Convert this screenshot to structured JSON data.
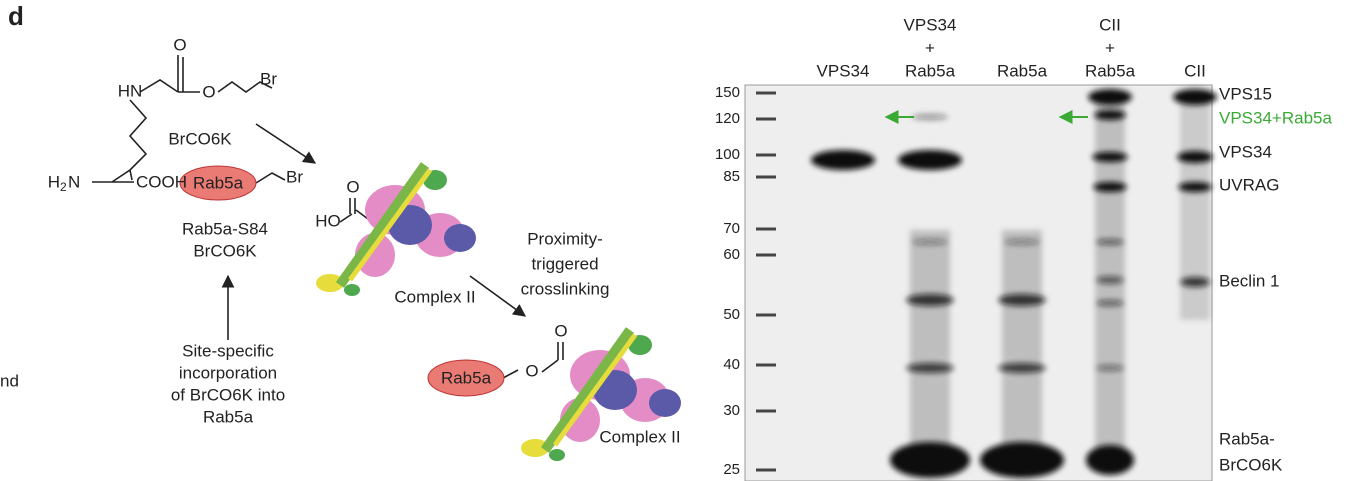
{
  "panel_label": "d",
  "left_cut_text": "nd",
  "scheme": {
    "brco6k": {
      "nh": "HN",
      "o_top": "O",
      "o_ester": "O",
      "br": "Br",
      "name": "BrCO6K",
      "amino": "H",
      "amino_sub": "2",
      "amino_n": "N",
      "cooh": "COOH"
    },
    "reagent": {
      "protein": "Rab5a",
      "br": "Br",
      "name_line1": "Rab5a-S84",
      "name_line2": "BrCO6K"
    },
    "incorporation": [
      "Site-specific",
      "incorporation",
      "of BrCO6K into",
      "Rab5a"
    ],
    "complex": {
      "o": "O",
      "ho": "HO",
      "label": "Complex II"
    },
    "crosslinking": [
      "Proximity-",
      "triggered",
      "crosslinking"
    ],
    "product": {
      "protein": "Rab5a",
      "o_ester": "O",
      "o_top": "O",
      "label": "Complex II"
    }
  },
  "gel": {
    "lanes": [
      [
        "VPS34"
      ],
      [
        "VPS34",
        "+",
        "Rab5a"
      ],
      [
        "Rab5a"
      ],
      [
        "CII",
        "+",
        "Rab5a"
      ],
      [
        "CII"
      ]
    ],
    "markers": [
      150,
      120,
      100,
      85,
      70,
      60,
      50,
      40,
      30,
      25
    ],
    "bands": [
      {
        "label": [
          "VPS15"
        ]
      },
      {
        "label": [
          "VPS34+Rab5a"
        ],
        "color": "#3aaa35"
      },
      {
        "label": [
          "VPS34"
        ]
      },
      {
        "label": [
          "UVRAG"
        ]
      },
      {
        "label": [
          "Beclin 1"
        ]
      },
      {
        "label": [
          "Rab5a-",
          "BrCO6K"
        ]
      }
    ]
  }
}
